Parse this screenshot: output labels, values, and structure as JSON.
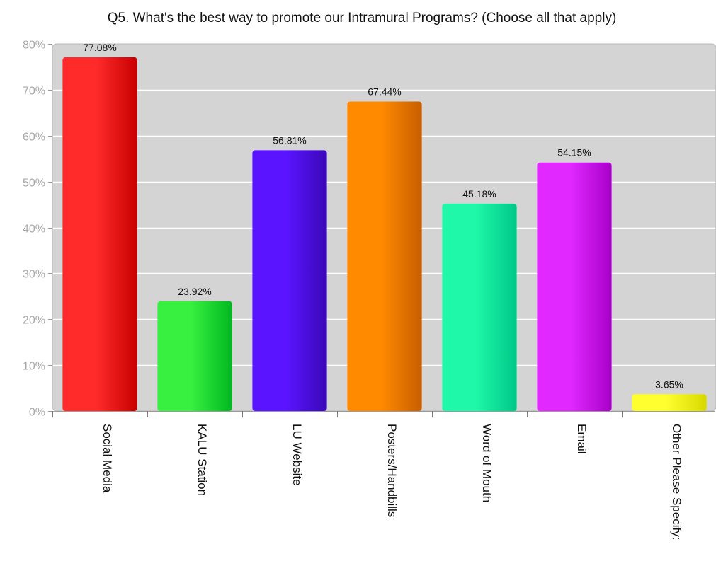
{
  "chart_data": {
    "type": "bar",
    "title": "Q5. What's the best way to promote our Intramural Programs? (Choose all that apply)",
    "xlabel": "",
    "ylabel": "",
    "categories": [
      "Social Media",
      "KALU Station",
      "LU Website",
      "Posters/Handbills",
      "Word of Mouth",
      "Email",
      "Other Please Specify:"
    ],
    "values": [
      77.08,
      23.92,
      56.81,
      67.44,
      45.18,
      54.15,
      3.65
    ],
    "value_labels": [
      "77.08%",
      "23.92%",
      "56.81%",
      "67.44%",
      "45.18%",
      "54.15%",
      "3.65%"
    ],
    "ylim": [
      0,
      80
    ],
    "y_ticks": [
      0,
      10,
      20,
      30,
      40,
      50,
      60,
      70,
      80
    ],
    "y_tick_labels": [
      "0%",
      "10%",
      "20%",
      "30%",
      "40%",
      "50%",
      "60%",
      "70%",
      "80%"
    ],
    "grid": true,
    "legend": "none",
    "colors": [
      {
        "light": "#ff2b2b",
        "dark": "#c80000"
      },
      {
        "light": "#38f040",
        "dark": "#00b820"
      },
      {
        "light": "#5a14ff",
        "dark": "#3a08b8"
      },
      {
        "light": "#ff8a00",
        "dark": "#c85e00"
      },
      {
        "light": "#1ef8a8",
        "dark": "#00c888"
      },
      {
        "light": "#e028ff",
        "dark": "#a800c8"
      },
      {
        "light": "#ffff30",
        "dark": "#d8d800"
      }
    ],
    "plot_background": "#d4d4d4",
    "grid_color": "#ffffff"
  }
}
